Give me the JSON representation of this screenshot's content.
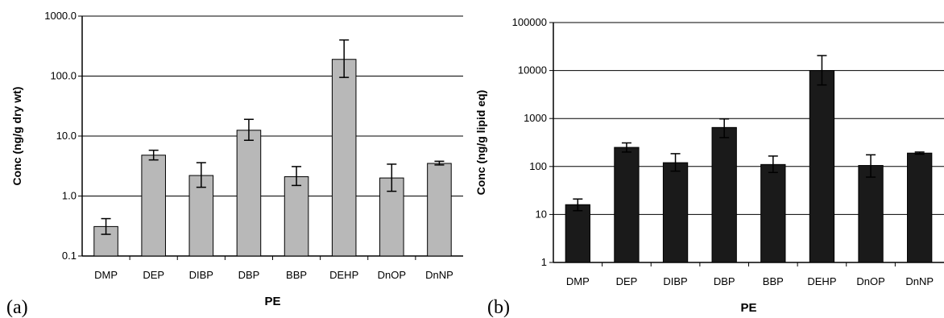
{
  "chart_data": [
    {
      "type": "bar",
      "panel_label": "(a)",
      "categories": [
        "DMP",
        "DEP",
        "DIBP",
        "DBP",
        "BBP",
        "DEHP",
        "DnOP",
        "DnNP"
      ],
      "values": [
        0.31,
        4.8,
        2.2,
        12.5,
        2.1,
        190,
        2.0,
        3.5
      ],
      "err_high": [
        0.42,
        5.8,
        3.6,
        19,
        3.1,
        400,
        3.4,
        3.8
      ],
      "err_low": [
        0.23,
        4.0,
        1.4,
        8.5,
        1.5,
        95,
        1.2,
        3.3
      ],
      "xlabel": "PE",
      "ylabel": "Conc (ng/g dry wt)",
      "yscale": "log",
      "ylim": [
        0.1,
        1000
      ],
      "yticks": [
        "0.1",
        "1.0",
        "10.0",
        "100.0",
        "1000.0"
      ],
      "grid": true,
      "bar_color": "#b8b8b8"
    },
    {
      "type": "bar",
      "panel_label": "(b)",
      "categories": [
        "DMP",
        "DEP",
        "DIBP",
        "DBP",
        "BBP",
        "DEHP",
        "DnOP",
        "DnNP"
      ],
      "values": [
        16,
        250,
        120,
        650,
        110,
        10000,
        105,
        190
      ],
      "err_high": [
        21,
        310,
        185,
        980,
        165,
        20500,
        175,
        200
      ],
      "err_low": [
        12,
        200,
        80,
        400,
        75,
        5000,
        60,
        180
      ],
      "xlabel": "PE",
      "ylabel": "Conc (ng/g lipid eq)",
      "yscale": "log",
      "ylim": [
        1,
        100000
      ],
      "yticks": [
        "1",
        "10",
        "100",
        "1000",
        "10000",
        "100000"
      ],
      "grid": true,
      "bar_color": "#1a1a1a"
    }
  ]
}
